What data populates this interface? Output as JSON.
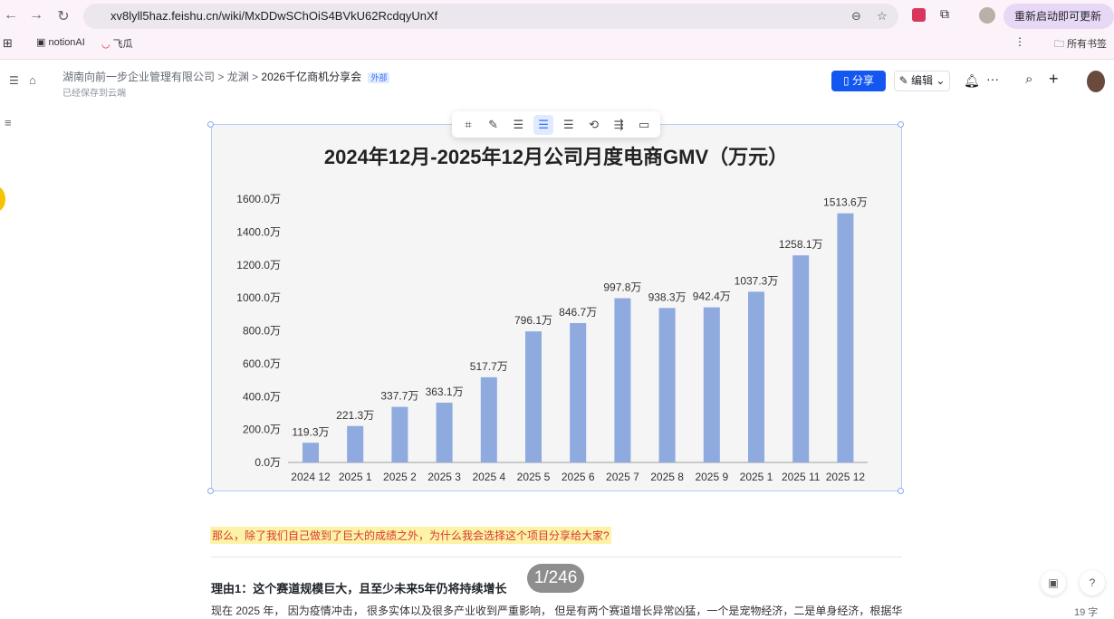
{
  "browser": {
    "url": "xv8lyll5haz.feishu.cn/wiki/MxDDwSChOiS4BVkU62RcdqyUnXf",
    "update_label": "重新启动即可更新",
    "bookmarks": [
      "notionAI",
      "飞瓜"
    ],
    "all_bookmarks": "所有书签"
  },
  "doc": {
    "breadcrumb": [
      "湖南向前一步企业管理有限公司",
      "龙渊",
      "2026千亿商机分享会"
    ],
    "badge": "外部",
    "saved_status": "已经保存到云端",
    "share_label": "分享",
    "edit_label": "编辑"
  },
  "toolbar": {
    "icons": [
      "crop-icon",
      "caption-icon",
      "align-left-icon",
      "align-center-icon",
      "align-right-icon",
      "replace-icon",
      "wrap-icon",
      "comment-icon"
    ],
    "active": "align-center-icon"
  },
  "chart_data": {
    "type": "bar",
    "title": "2024年12月-2025年12月公司月度电商GMV（万元）",
    "categories": [
      "2024 12",
      "2025 1",
      "2025 2",
      "2025 3",
      "2025 4",
      "2025 5",
      "2025 6",
      "2025 7",
      "2025 8",
      "2025 9",
      "2025 1",
      "2025 11",
      "2025 12"
    ],
    "values": [
      119.3,
      221.3,
      337.7,
      363.1,
      517.7,
      796.1,
      846.7,
      997.8,
      938.3,
      942.4,
      1037.3,
      1258.1,
      1513.6
    ],
    "value_labels": [
      "119.3万",
      "221.3万",
      "337.7万",
      "363.1万",
      "517.7万",
      "796.1万",
      "846.7万",
      "997.8万",
      "938.3万",
      "942.4万",
      "1037.3万",
      "1258.1万",
      "1513.6万"
    ],
    "yticks": [
      "0.0万",
      "200.0万",
      "400.0万",
      "600.0万",
      "800.0万",
      "1000.0万",
      "1200.0万",
      "1400.0万",
      "1600.0万"
    ],
    "ylim": [
      0,
      1600
    ],
    "bar_color": "#8eaadf",
    "grid": false
  },
  "content": {
    "highlight": "那么，除了我们自己做到了巨大的成绩之外，为什么我会选择这个项目分享给大家?",
    "heading": "理由1：这个赛道规模巨大，且至少未来5年仍将持续增长",
    "paragraph": "现在 2025 年， 因为疫情冲击， 很多实体以及很多产业收到严重影响， 但是有两个赛道增长异常凶猛，一个是宠物经济，二是单身经济，根据华",
    "pager": "1/246",
    "word_count": "19 字"
  }
}
